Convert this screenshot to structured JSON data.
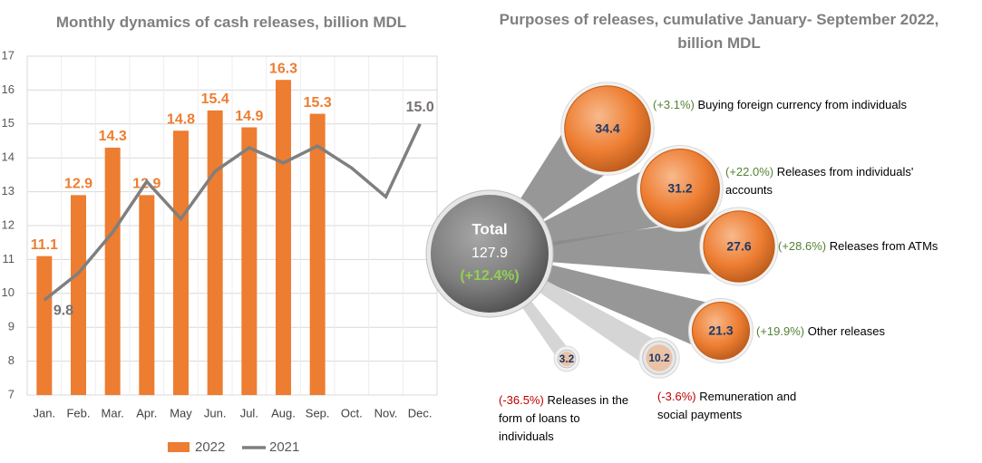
{
  "chart_data": [
    {
      "type": "bar_line",
      "title": "Monthly dynamics of cash releases, billion MDL",
      "categories": [
        "Jan.",
        "Feb.",
        "Mar.",
        "Apr.",
        "May",
        "Jun.",
        "Jul.",
        "Aug.",
        "Sep.",
        "Oct.",
        "Nov.",
        "Dec."
      ],
      "series": [
        {
          "name": "2022",
          "color": "#ed7d31",
          "kind": "bar",
          "values": [
            11.1,
            12.9,
            14.3,
            12.9,
            14.8,
            15.4,
            14.9,
            16.3,
            15.3,
            null,
            null,
            null
          ]
        },
        {
          "name": "2021",
          "color": "#7f7f7f",
          "kind": "line",
          "values": [
            9.8,
            10.6,
            11.8,
            13.3,
            12.2,
            13.6,
            14.3,
            13.85,
            14.35,
            13.7,
            12.85,
            15
          ],
          "value_labels": [
            "9.8",
            null,
            null,
            null,
            null,
            null,
            null,
            null,
            null,
            null,
            null,
            "15.0"
          ]
        }
      ],
      "ylim": [
        7,
        17
      ],
      "yticks": [
        7,
        8,
        9,
        10,
        11,
        12,
        13,
        14,
        15,
        16,
        17
      ],
      "grid": true,
      "legend": "bottom"
    },
    {
      "type": "bubble",
      "title": "Purposes of releases, cumulative January- September 2022, billion MDL",
      "total_label": "Total",
      "total": 127.9,
      "total_change": "(+12.4%)",
      "color": "#ed7d31",
      "total_color": "#7f7f7f",
      "categories": [
        "Buying foreign currency from individuals",
        "Releases from individuals' accounts",
        "Releases from ATMs",
        "Other releases",
        "Remuneration and social payments",
        "Releases in the form of loans to individuals"
      ],
      "values": [
        34.4,
        31.2,
        27.6,
        21.3,
        10.2,
        3.2
      ],
      "change_labels": [
        "(+3.1%)",
        "(+22.0%)",
        "(+28.6%)",
        "(+19.9%)",
        "(-3.6%)",
        "(-36.5%)"
      ]
    }
  ]
}
